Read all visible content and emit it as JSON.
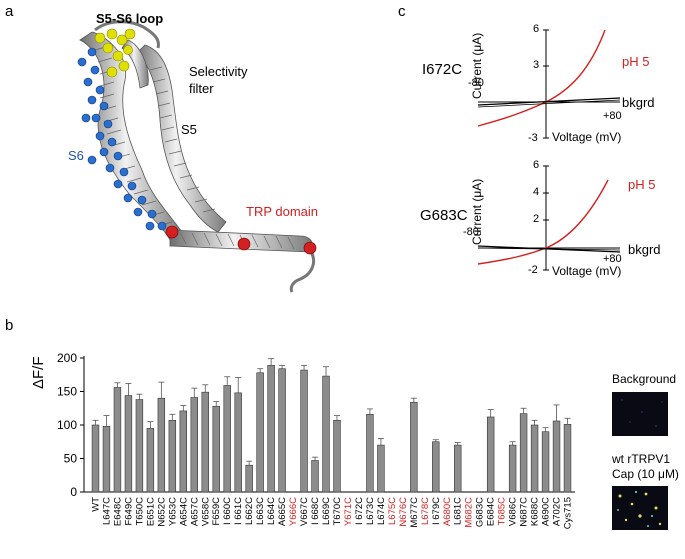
{
  "panels": {
    "a": {
      "letter": "a",
      "labels": {
        "loop": "S5-S6 loop",
        "filter_line1": "Selectivity",
        "filter_line2": "filter",
        "s5": "S5",
        "s6": "S6",
        "trp": "TRP domain"
      },
      "colors": {
        "loop": "#b5b520",
        "s6": "#1f55a5",
        "trp": "#d42020",
        "helix": "#bdbdbd"
      }
    },
    "b": {
      "letter": "b",
      "background_label": "Background",
      "cap_line1": "wt rTRPV1",
      "cap_line2": "Cap (10 μM)"
    },
    "c": {
      "letter": "c",
      "plots": [
        {
          "mutant": "I672C",
          "ylabel": "Current (μA)",
          "xlabel": "Voltage (mV)",
          "xmin_label": "-80",
          "xmax_label": "+80",
          "ytop_label": "6",
          "ymid_label": "3",
          "ybottom_label": "-3",
          "ph_label": "pH 5",
          "bkgrd_label": "bkgrd"
        },
        {
          "mutant": "G683C",
          "ylabel": "Current (μA)",
          "xlabel": "Voltage (mV)",
          "xmin_label": "-80",
          "xmax_label": "+80",
          "ytop_label": "6",
          "ymid_label": "4",
          "ymid2_label": "2",
          "ybottom_label": "-2",
          "ph_label": "pH 5",
          "bkgrd_label": "bkgrd"
        }
      ]
    }
  },
  "chart_data": {
    "type": "bar",
    "ylabel": "ΔF/F",
    "ylim": [
      0,
      200
    ],
    "yticks": [
      "0",
      "50",
      "100",
      "150",
      "200"
    ],
    "bar_color": "#8c8c8c",
    "highlight_color": "#d42020",
    "categories": [
      {
        "label": "WT",
        "value": 100,
        "err": 7,
        "red": false
      },
      {
        "label": "L647C",
        "value": 98,
        "err": 16,
        "red": false
      },
      {
        "label": "E648C",
        "value": 156,
        "err": 7,
        "red": false
      },
      {
        "label": "F649C",
        "value": 144,
        "err": 18,
        "red": false
      },
      {
        "label": "T650C",
        "value": 138,
        "err": 8,
        "red": false
      },
      {
        "label": "E651C",
        "value": 95,
        "err": 10,
        "red": false
      },
      {
        "label": "N652C",
        "value": 140,
        "err": 24,
        "red": false
      },
      {
        "label": "Y653C",
        "value": 107,
        "err": 9,
        "red": false
      },
      {
        "label": "A654C",
        "value": 121,
        "err": 8,
        "red": false
      },
      {
        "label": "A657C",
        "value": 141,
        "err": 14,
        "red": false
      },
      {
        "label": "V658C",
        "value": 149,
        "err": 11,
        "red": false
      },
      {
        "label": "F659C",
        "value": 128,
        "err": 7,
        "red": false
      },
      {
        "label": "I 660C",
        "value": 159,
        "err": 13,
        "red": false
      },
      {
        "label": "I 661C",
        "value": 148,
        "err": 23,
        "red": false
      },
      {
        "label": "L662C",
        "value": 40,
        "err": 6,
        "red": false
      },
      {
        "label": "L663C",
        "value": 178,
        "err": 6,
        "red": false
      },
      {
        "label": "L664C",
        "value": 189,
        "err": 10,
        "red": false
      },
      {
        "label": "A665C",
        "value": 184,
        "err": 5,
        "red": false
      },
      {
        "label": "Y666C",
        "value": 0,
        "err": 0,
        "red": true
      },
      {
        "label": "V667C",
        "value": 182,
        "err": 7,
        "red": false
      },
      {
        "label": "I 668C",
        "value": 47,
        "err": 5,
        "red": false
      },
      {
        "label": "L669C",
        "value": 173,
        "err": 14,
        "red": false
      },
      {
        "label": "T670C",
        "value": 107,
        "err": 7,
        "red": false
      },
      {
        "label": "Y671C",
        "value": 0,
        "err": 0,
        "red": true
      },
      {
        "label": "I 672C",
        "value": 0,
        "err": 0,
        "red": false
      },
      {
        "label": "L673C",
        "value": 116,
        "err": 8,
        "red": false
      },
      {
        "label": "L674C",
        "value": 70,
        "err": 10,
        "red": false
      },
      {
        "label": "L675C",
        "value": 0,
        "err": 0,
        "red": true
      },
      {
        "label": "N676C",
        "value": 0,
        "err": 0,
        "red": true
      },
      {
        "label": "M677C",
        "value": 134,
        "err": 6,
        "red": false
      },
      {
        "label": "L678C",
        "value": 0,
        "err": 0,
        "red": true
      },
      {
        "label": "I 679C",
        "value": 75,
        "err": 3,
        "red": false
      },
      {
        "label": "A680C",
        "value": 0,
        "err": 0,
        "red": true
      },
      {
        "label": "L681C",
        "value": 70,
        "err": 4,
        "red": false
      },
      {
        "label": "M682C",
        "value": 0,
        "err": 0,
        "red": true
      },
      {
        "label": "G683C",
        "value": 0,
        "err": 0,
        "red": false
      },
      {
        "label": "E684C",
        "value": 112,
        "err": 11,
        "red": false
      },
      {
        "label": "T685C",
        "value": 0,
        "err": 0,
        "red": true
      },
      {
        "label": "V686C",
        "value": 70,
        "err": 5,
        "red": false
      },
      {
        "label": "N687C",
        "value": 117,
        "err": 8,
        "red": false
      },
      {
        "label": "K688C",
        "value": 100,
        "err": 7,
        "red": false
      },
      {
        "label": "A690C",
        "value": 90,
        "err": 6,
        "red": false
      },
      {
        "label": "A702C",
        "value": 106,
        "err": 24,
        "red": false
      },
      {
        "label": "Cys715",
        "value": 101,
        "err": 9,
        "red": false
      }
    ]
  }
}
